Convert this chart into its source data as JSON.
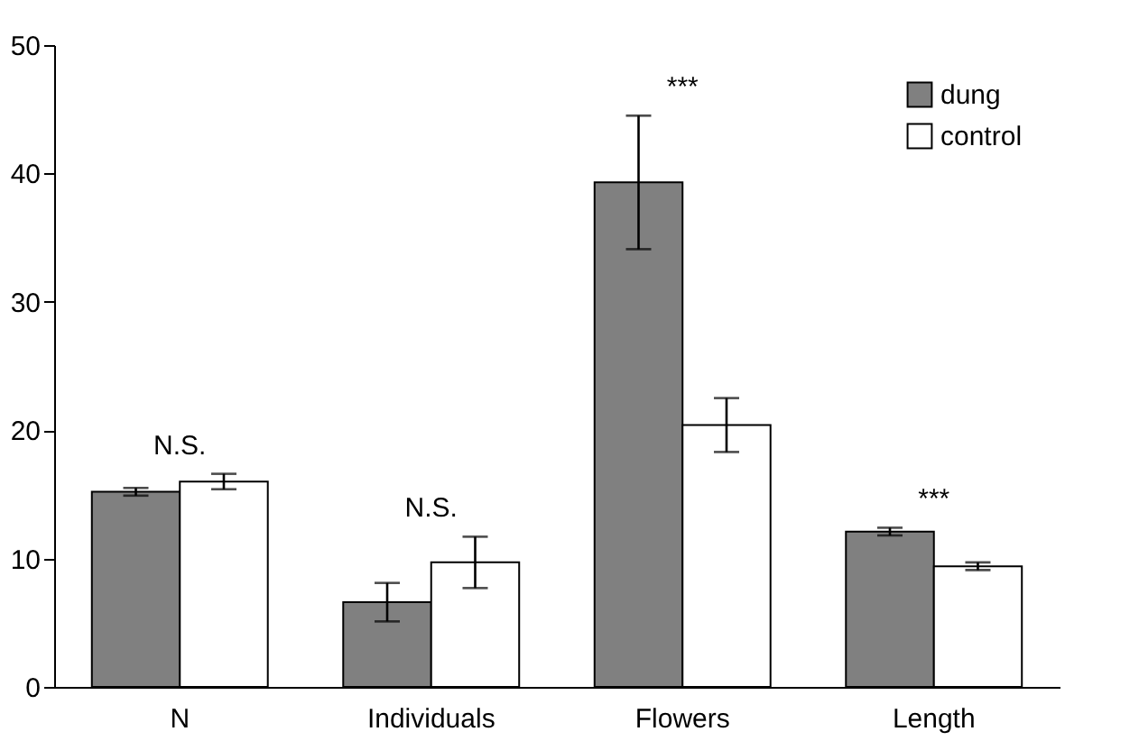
{
  "chart_data": {
    "type": "bar",
    "categories": [
      "N",
      "Individuals",
      "Flowers",
      "Length"
    ],
    "series": [
      {
        "name": "dung",
        "color": "#808080",
        "values": [
          15.2,
          6.6,
          39.3,
          12.1
        ],
        "errors": [
          0.3,
          1.5,
          5.2,
          0.3
        ]
      },
      {
        "name": "control",
        "color": "#ffffff",
        "values": [
          16.0,
          9.7,
          20.4,
          9.4
        ],
        "errors": [
          0.6,
          2.0,
          2.1,
          0.3
        ]
      }
    ],
    "ylim": [
      0,
      50
    ],
    "yticks": [
      0,
      10,
      20,
      30,
      40,
      50
    ],
    "grid": false,
    "legend": "top right",
    "annotations": [
      "N.S.",
      "N.S.",
      "***",
      "***"
    ]
  }
}
